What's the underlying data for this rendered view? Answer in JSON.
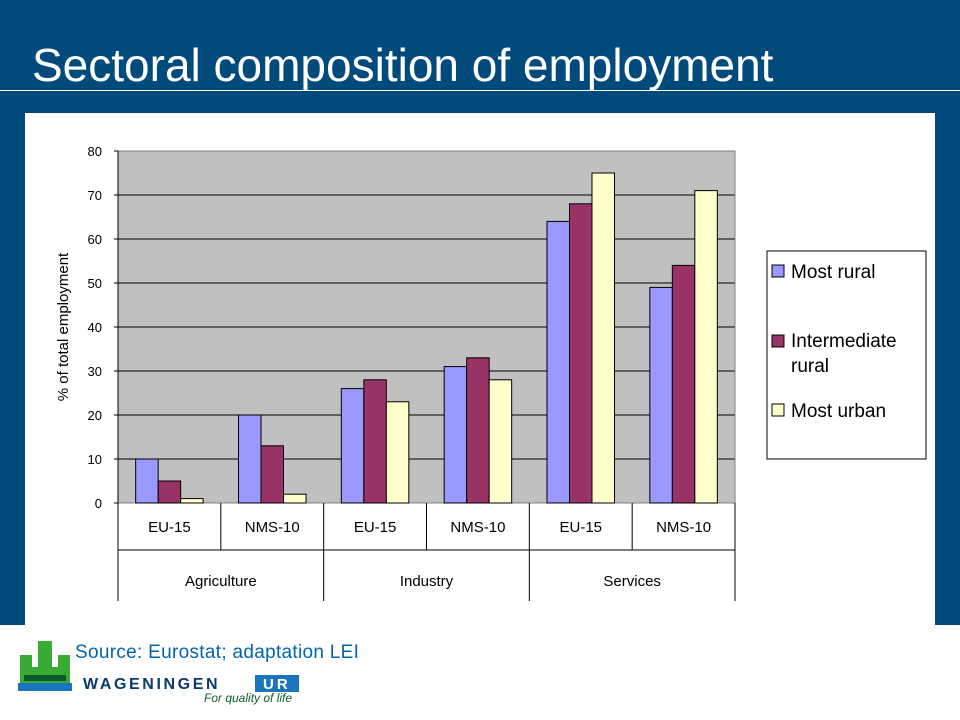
{
  "title": "Sectoral composition of employment",
  "source": "Source: Eurostat; adaptation LEI",
  "logo": {
    "word_a": "WAGENINGEN",
    "word_b": "UR",
    "tagline": "For quality of life"
  },
  "colors": {
    "most_rural": "#9999ff",
    "intermediate_rural": "#993366",
    "most_urban": "#ffffcc",
    "plot_bg": "#c0c0c0",
    "slide_bg": "#004a7c"
  },
  "chart_data": {
    "type": "bar",
    "ylabel": "% of total employment",
    "ylim": [
      0,
      80
    ],
    "yticks": [
      0,
      10,
      20,
      30,
      40,
      50,
      60,
      70,
      80
    ],
    "grid": true,
    "legend_position": "right",
    "groups": [
      "Agriculture",
      "Industry",
      "Services"
    ],
    "categories": [
      "EU-15",
      "NMS-10",
      "EU-15",
      "NMS-10",
      "EU-15",
      "NMS-10"
    ],
    "series": [
      {
        "name": "Most rural",
        "color": "#9999ff",
        "values": [
          10,
          20,
          26,
          31,
          64,
          49
        ]
      },
      {
        "name": "Intermediate rural",
        "color": "#993366",
        "values": [
          5,
          13,
          28,
          33,
          68,
          54
        ]
      },
      {
        "name": "Most urban",
        "color": "#ffffcc",
        "values": [
          1,
          2,
          23,
          28,
          75,
          71
        ]
      }
    ]
  }
}
